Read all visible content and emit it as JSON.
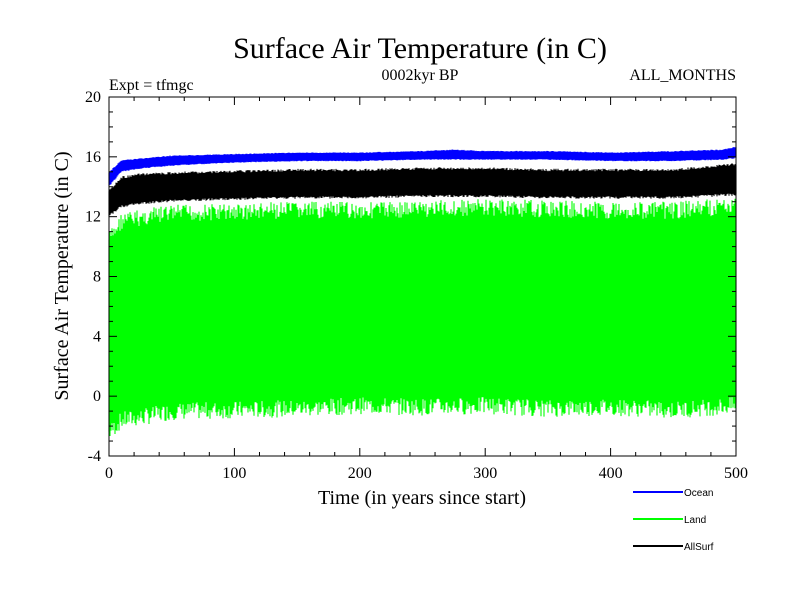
{
  "chart_data": {
    "type": "line",
    "title": "Surface Air Temperature (in C)",
    "subtitle_left": "Expt = tfmgc",
    "subtitle_center": "0002kyr BP",
    "subtitle_right": "ALL_MONTHS",
    "xlabel": "Time (in years since start)",
    "ylabel": "Surface Air Temperature (in C)",
    "xlim": [
      0,
      500
    ],
    "ylim": [
      -4,
      20
    ],
    "x_ticks": [
      0,
      100,
      200,
      300,
      400,
      500
    ],
    "y_ticks": [
      -4,
      0,
      4,
      8,
      12,
      16,
      20
    ],
    "grid": false,
    "legend_position": "bottom-right",
    "series": [
      {
        "name": "Ocean",
        "color": "#0000ff",
        "x": [
          0,
          10,
          25,
          50,
          100,
          150,
          200,
          250,
          275,
          300,
          350,
          400,
          450,
          490,
          500
        ],
        "y_min": [
          14.0,
          15.0,
          15.2,
          15.4,
          15.6,
          15.7,
          15.7,
          15.8,
          15.8,
          15.8,
          15.8,
          15.7,
          15.7,
          15.8,
          15.9
        ],
        "y_max": [
          15.0,
          15.8,
          15.9,
          16.1,
          16.2,
          16.3,
          16.3,
          16.4,
          16.5,
          16.4,
          16.4,
          16.3,
          16.4,
          16.5,
          16.7
        ]
      },
      {
        "name": "Land",
        "color": "#00ff00",
        "x": [
          0,
          10,
          25,
          50,
          100,
          150,
          200,
          250,
          300,
          350,
          400,
          450,
          500
        ],
        "y_min": [
          -3.0,
          -2.2,
          -2.0,
          -1.6,
          -1.5,
          -1.4,
          -1.2,
          -1.3,
          -1.2,
          -1.4,
          -1.3,
          -1.5,
          -1.2
        ],
        "y_max": [
          11.0,
          12.3,
          12.5,
          12.8,
          12.9,
          13.0,
          13.0,
          13.1,
          13.2,
          13.1,
          13.0,
          13.0,
          13.3
        ]
      },
      {
        "name": "AllSurf",
        "color": "#000000",
        "x": [
          0,
          10,
          25,
          50,
          100,
          150,
          200,
          250,
          300,
          350,
          400,
          450,
          500
        ],
        "y_min": [
          12.0,
          12.6,
          12.8,
          13.0,
          13.1,
          13.2,
          13.2,
          13.3,
          13.3,
          13.2,
          13.2,
          13.2,
          13.4
        ],
        "y_max": [
          13.8,
          14.7,
          14.9,
          15.0,
          15.1,
          15.2,
          15.2,
          15.3,
          15.3,
          15.2,
          15.2,
          15.2,
          15.6
        ]
      }
    ]
  }
}
